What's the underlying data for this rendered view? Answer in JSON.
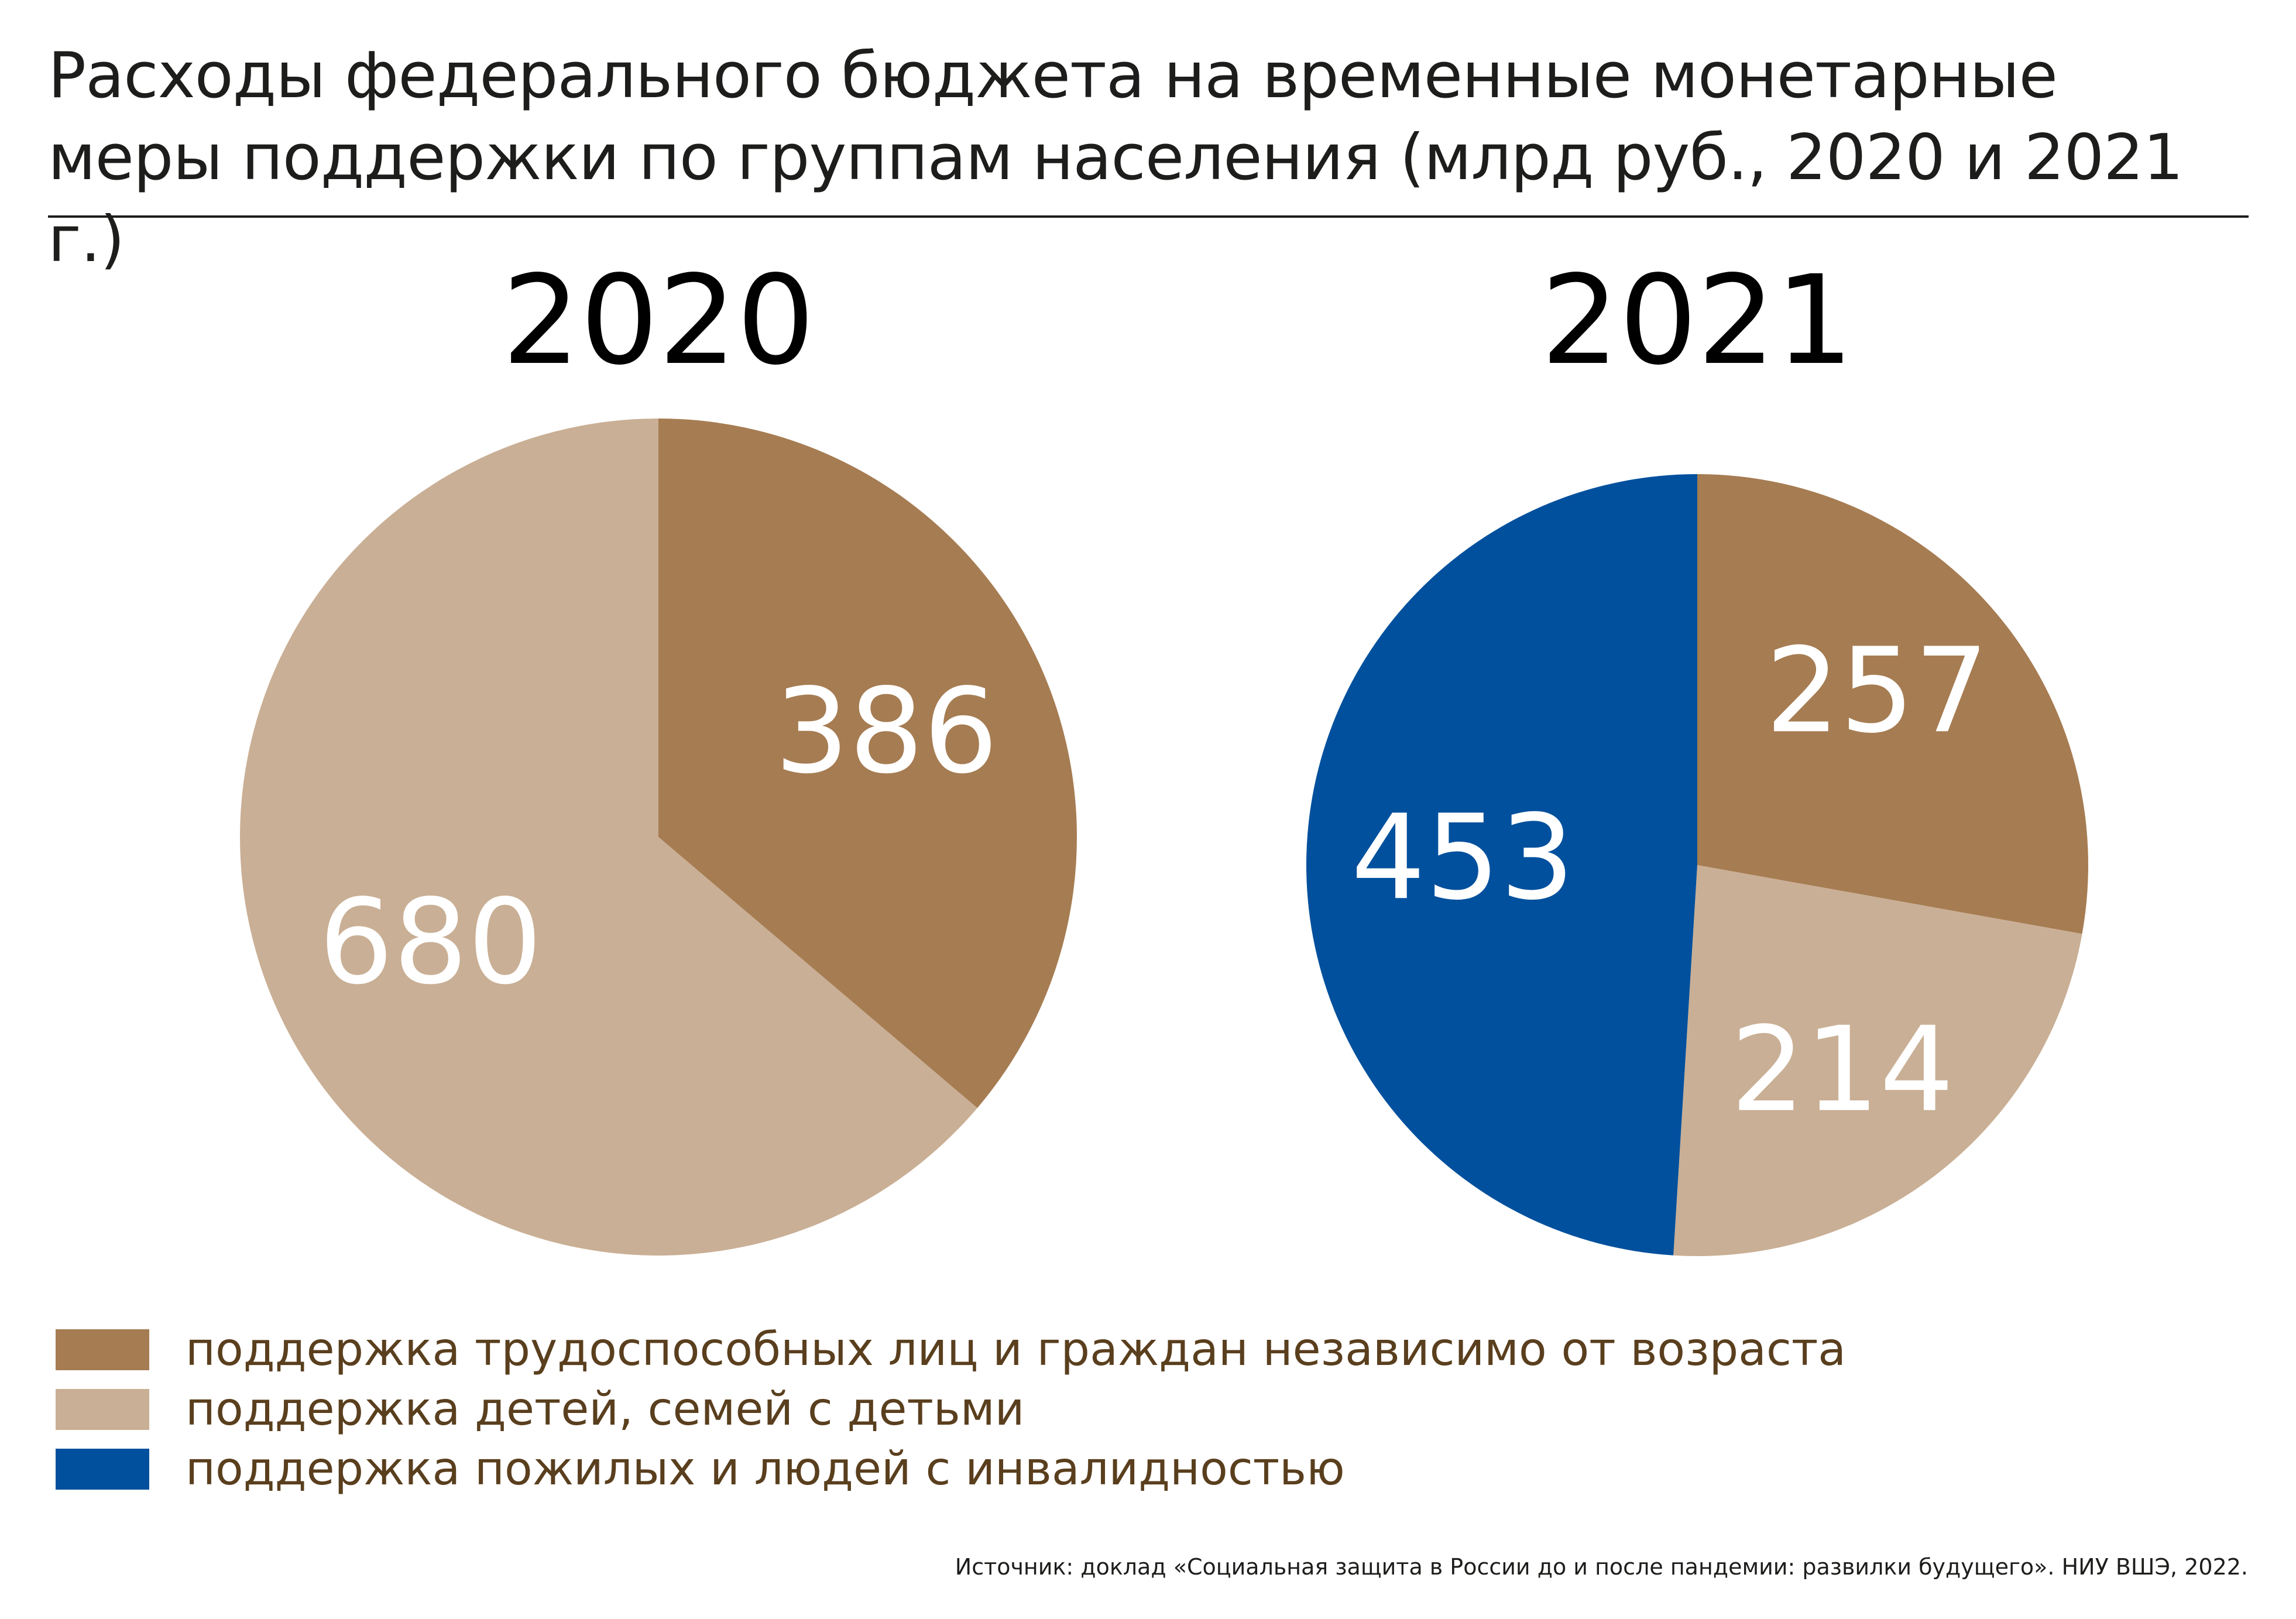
{
  "title": "Расходы федерального бюджета на временные монетарные меры поддержки по группам населения (млрд руб., 2020 и 2021 г.)",
  "colors": {
    "working_age": "#a67c52",
    "families": "#c9af95",
    "elderly": "#00509d",
    "legend_text": "#5a3f1e"
  },
  "chart_data": [
    {
      "type": "pie",
      "title": "2020",
      "start_angle_deg": 0,
      "direction": "clockwise",
      "slices": [
        {
          "label": "поддержка трудоспособных лиц и граждан независимо от возраста",
          "value": 386,
          "value_text": "386",
          "color": "#a67c52"
        },
        {
          "label": "поддержка детей, семей с детьми",
          "value": 680,
          "value_text": "680",
          "color": "#c9af95"
        }
      ]
    },
    {
      "type": "pie",
      "title": "2021",
      "start_angle_deg": 0,
      "direction": "clockwise",
      "slices": [
        {
          "label": "поддержка трудоспособных лиц и граждан независимо от возраста",
          "value": 257,
          "value_text": "257",
          "color": "#a67c52"
        },
        {
          "label": "поддержка детей, семей с детьми",
          "value": 214,
          "value_text": "214",
          "color": "#c9af95"
        },
        {
          "label": "поддержка пожилых и людей с инвалидностью",
          "value": 453,
          "value_text": "453",
          "color": "#00509d"
        }
      ]
    }
  ],
  "legend": [
    {
      "label": "поддержка трудоспособных лиц и граждан независимо от возраста",
      "color": "#a67c52"
    },
    {
      "label": "поддержка детей, семей с детьми",
      "color": "#c9af95"
    },
    {
      "label": "поддержка пожилых и людей с инвалидностью",
      "color": "#00509d"
    }
  ],
  "source": "Источник: доклад «Социальная защита в России до и после пандемии: развилки будущего». НИУ ВШЭ, 2022."
}
